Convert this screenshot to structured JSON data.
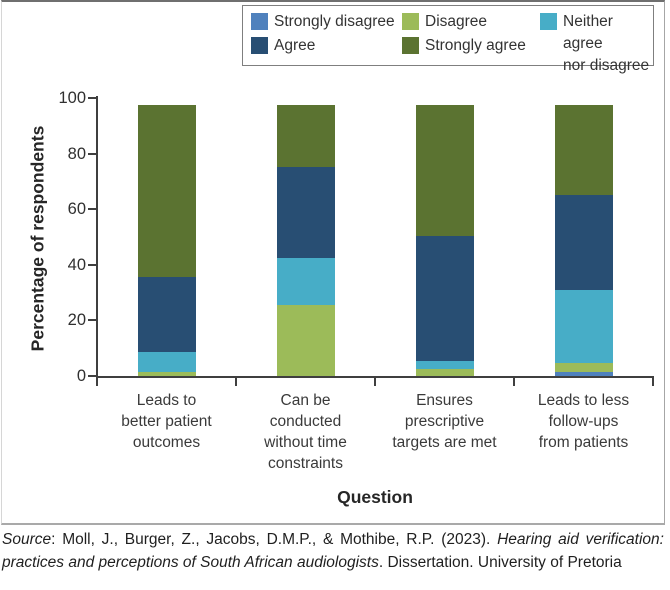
{
  "figure": {
    "x_axis_title": "Question",
    "y_axis_title": "Percentage of respondents"
  },
  "legend": {
    "items": [
      {
        "name": "Strongly disagree",
        "display_lines": "Strongly disagree",
        "color": "#4f81bd"
      },
      {
        "name": "Disagree",
        "display_lines": "Disagree",
        "color": "#9cbb59"
      },
      {
        "name": "Neither agree nor disagree",
        "display_lines": "Neither agree\nnor disagree",
        "color": "#47adc7"
      },
      {
        "name": "Agree",
        "display_lines": "Agree",
        "color": "#284e73"
      },
      {
        "name": "Strongly agree",
        "display_lines": "Strongly agree",
        "color": "#5b7331"
      }
    ]
  },
  "chart_data": {
    "type": "bar",
    "stacked": true,
    "xlabel": "Question",
    "ylabel": "Percentage of respondents",
    "ylim": [
      0,
      100
    ],
    "yticks": [
      0,
      20,
      40,
      60,
      80,
      100
    ],
    "grid": false,
    "legend_position": "top-right",
    "categories": [
      "Leads to better patient outcomes",
      "Can be conducted without time constraints",
      "Ensures prescriptive targets are met",
      "Leads to less follow-ups from patients"
    ],
    "category_label_lines": [
      [
        "Leads to",
        "better patient",
        "outcomes"
      ],
      [
        "Can be",
        "conducted",
        "without time",
        "constraints"
      ],
      [
        "Ensures",
        "prescriptive",
        "targets are met"
      ],
      [
        "Leads to less",
        "follow-ups",
        "from patients"
      ]
    ],
    "series": [
      {
        "name": "Strongly disagree",
        "color": "#4f81bd",
        "values": [
          0,
          0,
          0,
          1.5
        ]
      },
      {
        "name": "Disagree",
        "color": "#9cbb59",
        "values": [
          1.5,
          25.5,
          2.5,
          3.3
        ]
      },
      {
        "name": "Neither agree nor disagree",
        "color": "#47adc7",
        "values": [
          7.3,
          17.0,
          3.0,
          26.1
        ]
      },
      {
        "name": "Agree",
        "color": "#284e73",
        "values": [
          26.7,
          32.8,
          45.0,
          34.1
        ]
      },
      {
        "name": "Strongly agree",
        "color": "#5b7331",
        "values": [
          62.0,
          22.2,
          47.0,
          32.5
        ]
      }
    ]
  },
  "caption": {
    "source_word": "Source",
    "authors": ": Moll, J., Burger, Z., Jacobs, D.M.P., & Mothibe, R.P. (2023). ",
    "title_italic": "Hearing aid verification: practices and perceptions of South African audiologists",
    "tail": ". Dissertation. University of Pretoria"
  }
}
